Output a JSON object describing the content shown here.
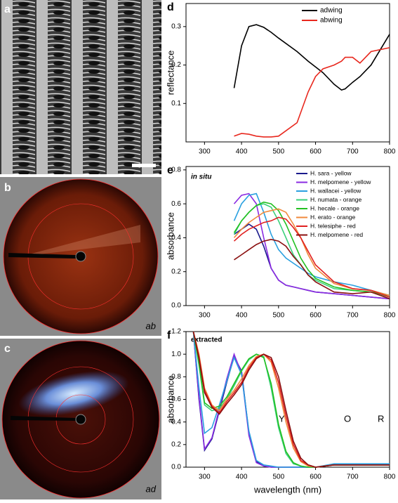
{
  "panels": {
    "a": "a",
    "b": "b",
    "c": "c",
    "b_note": "ab",
    "c_note": "ad"
  },
  "chart_data": [
    {
      "type": "line",
      "panel_label": "d",
      "y_label": "reflectance",
      "xlim": [
        250,
        800
      ],
      "ylim": [
        0,
        0.36
      ],
      "xticks": [
        300,
        400,
        500,
        600,
        700,
        800
      ],
      "yticks": [
        0.1,
        0.2,
        0.3
      ],
      "x": [
        380,
        400,
        420,
        440,
        460,
        480,
        500,
        550,
        580,
        600,
        620,
        650,
        670,
        680,
        700,
        720,
        750,
        800
      ],
      "series": [
        {
          "name": "adwing",
          "color": "#000000",
          "values": [
            0.14,
            0.25,
            0.3,
            0.305,
            0.298,
            0.285,
            0.27,
            0.235,
            0.21,
            0.195,
            0.18,
            0.15,
            0.135,
            0.138,
            0.155,
            0.17,
            0.2,
            0.28
          ]
        },
        {
          "name": "abwing",
          "color": "#e8281e",
          "values": [
            0.015,
            0.022,
            0.02,
            0.015,
            0.013,
            0.013,
            0.015,
            0.05,
            0.13,
            0.17,
            0.19,
            0.2,
            0.21,
            0.22,
            0.22,
            0.205,
            0.235,
            0.245
          ]
        }
      ]
    },
    {
      "type": "line",
      "panel_label": "e",
      "y_label": "absorbance",
      "annotations": [
        "in situ"
      ],
      "xlim": [
        250,
        800
      ],
      "ylim": [
        0,
        0.82
      ],
      "xticks": [
        300,
        400,
        500,
        600,
        700,
        800
      ],
      "yticks": [
        {
          "value": 0,
          "label": "0.0"
        },
        0.2,
        0.4,
        0.6,
        0.8
      ],
      "x": [
        380,
        400,
        420,
        440,
        460,
        480,
        500,
        520,
        540,
        560,
        580,
        600,
        650,
        700,
        750,
        800
      ],
      "series": [
        {
          "name": "H. sara - yellow",
          "color": "#1a1a8c",
          "values": [
            0.42,
            0.45,
            0.48,
            0.45,
            0.35,
            0.22,
            0.15,
            0.12,
            0.11,
            0.1,
            0.09,
            0.08,
            0.07,
            0.06,
            0.05,
            0.04
          ]
        },
        {
          "name": "H. melpomene - yellow",
          "color": "#8a2be2",
          "values": [
            0.6,
            0.65,
            0.66,
            0.6,
            0.4,
            0.22,
            0.15,
            0.12,
            0.11,
            0.1,
            0.09,
            0.08,
            0.07,
            0.06,
            0.05,
            0.04
          ]
        },
        {
          "name": "H. wallacei - yellow",
          "color": "#2aa0e0",
          "values": [
            0.5,
            0.6,
            0.65,
            0.66,
            0.55,
            0.42,
            0.33,
            0.28,
            0.25,
            0.22,
            0.19,
            0.17,
            0.14,
            0.12,
            0.09,
            0.06
          ]
        },
        {
          "name": "H. numata - orange",
          "color": "#3ad07a",
          "values": [
            0.42,
            0.5,
            0.55,
            0.59,
            0.6,
            0.58,
            0.5,
            0.4,
            0.3,
            0.24,
            0.18,
            0.15,
            0.1,
            0.09,
            0.08,
            0.05
          ]
        },
        {
          "name": "H. hecale - orange",
          "color": "#22c022",
          "values": [
            0.43,
            0.5,
            0.55,
            0.59,
            0.61,
            0.6,
            0.56,
            0.48,
            0.38,
            0.28,
            0.21,
            0.16,
            0.11,
            0.09,
            0.08,
            0.06
          ]
        },
        {
          "name": "H. erato - orange",
          "color": "#f08a3c",
          "values": [
            0.4,
            0.45,
            0.49,
            0.52,
            0.55,
            0.56,
            0.57,
            0.55,
            0.48,
            0.4,
            0.3,
            0.22,
            0.13,
            0.1,
            0.09,
            0.06
          ]
        },
        {
          "name": "H. telesiphe - red",
          "color": "#e02020",
          "values": [
            0.38,
            0.42,
            0.45,
            0.47,
            0.49,
            0.5,
            0.52,
            0.51,
            0.46,
            0.4,
            0.32,
            0.24,
            0.14,
            0.1,
            0.09,
            0.05
          ]
        },
        {
          "name": "H. melpomene - red",
          "color": "#8b1010",
          "values": [
            0.27,
            0.3,
            0.33,
            0.36,
            0.38,
            0.39,
            0.38,
            0.35,
            0.29,
            0.24,
            0.18,
            0.14,
            0.08,
            0.07,
            0.08,
            0.04
          ]
        }
      ]
    },
    {
      "type": "line",
      "panel_label": "f",
      "y_label": "absorbance",
      "x_label": "wavelength (nm)",
      "annotations": [
        "extracted",
        "Y",
        "O",
        "R"
      ],
      "xlim": [
        250,
        800
      ],
      "ylim": [
        0,
        1.2
      ],
      "xticks": [
        300,
        400,
        500,
        600,
        700,
        800
      ],
      "yticks": [
        {
          "value": 0,
          "label": "0.0"
        },
        0.2,
        0.4,
        0.6,
        0.8,
        {
          "value": 1,
          "label": "1.0"
        },
        1.2
      ],
      "x": [
        270,
        285,
        300,
        320,
        340,
        360,
        380,
        400,
        420,
        440,
        460,
        480,
        500,
        520,
        540,
        560,
        580,
        600,
        650,
        700,
        800
      ],
      "series": [
        {
          "color": "#1a1a8c",
          "values": [
            1.2,
            0.6,
            0.15,
            0.25,
            0.5,
            0.75,
            0.98,
            0.85,
            0.3,
            0.05,
            0.01,
            0,
            0,
            0,
            0,
            0,
            0,
            0,
            0.02,
            0.02,
            0.02
          ]
        },
        {
          "color": "#8a2be2",
          "values": [
            1.2,
            0.62,
            0.16,
            0.26,
            0.52,
            0.78,
            1,
            0.83,
            0.28,
            0.04,
            0.01,
            0,
            0,
            0,
            0,
            0,
            0,
            0,
            0.02,
            0.02,
            0.02
          ]
        },
        {
          "color": "#2aa0e0",
          "values": [
            1.2,
            0.7,
            0.3,
            0.35,
            0.55,
            0.76,
            0.97,
            0.82,
            0.32,
            0.06,
            0.02,
            0.01,
            0,
            0,
            0,
            0,
            0,
            0,
            0.03,
            0.03,
            0.03
          ]
        },
        {
          "color": "#3ad07a",
          "values": [
            1.2,
            0.9,
            0.55,
            0.5,
            0.52,
            0.6,
            0.72,
            0.85,
            0.95,
            1,
            0.98,
            0.7,
            0.35,
            0.12,
            0.03,
            0.01,
            0,
            0,
            0.02,
            0.02,
            0.02
          ]
        },
        {
          "color": "#22c022",
          "values": [
            1.2,
            0.92,
            0.57,
            0.52,
            0.54,
            0.62,
            0.74,
            0.86,
            0.96,
            1,
            0.97,
            0.74,
            0.38,
            0.14,
            0.04,
            0.01,
            0,
            0,
            0.02,
            0.02,
            0.02
          ]
        },
        {
          "color": "#f08a3c",
          "values": [
            1.2,
            1,
            0.7,
            0.55,
            0.5,
            0.6,
            0.68,
            0.78,
            0.9,
            0.98,
            1,
            0.93,
            0.7,
            0.4,
            0.17,
            0.05,
            0.01,
            0,
            0.02,
            0.02,
            0.02
          ]
        },
        {
          "color": "#e02020",
          "values": [
            1.2,
            0.98,
            0.68,
            0.54,
            0.48,
            0.58,
            0.66,
            0.75,
            0.88,
            0.97,
            1,
            0.95,
            0.75,
            0.45,
            0.2,
            0.06,
            0.02,
            0,
            0.02,
            0.02,
            0.02
          ]
        },
        {
          "color": "#8b1010",
          "values": [
            1.2,
            0.96,
            0.66,
            0.53,
            0.47,
            0.56,
            0.64,
            0.73,
            0.86,
            0.96,
            1,
            0.97,
            0.8,
            0.5,
            0.23,
            0.08,
            0.02,
            0,
            0.02,
            0.02,
            0.02
          ]
        }
      ]
    }
  ]
}
